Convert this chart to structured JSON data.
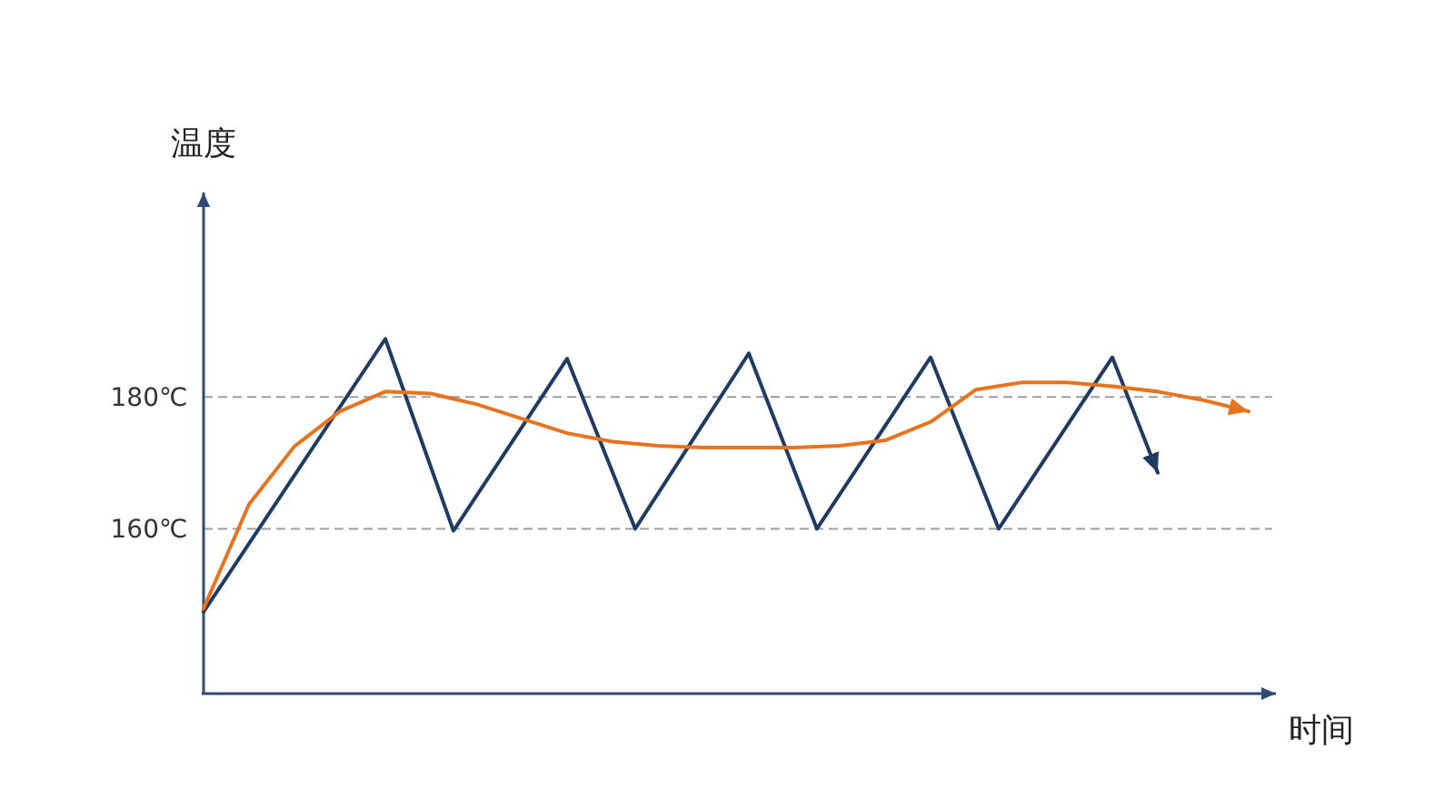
{
  "chart_data": {
    "type": "line",
    "xlabel": "时间",
    "ylabel": "温度",
    "categories": [
      null,
      null,
      null,
      null,
      null,
      null,
      null,
      null,
      null,
      null,
      null,
      null,
      null,
      null,
      null,
      null,
      null,
      null,
      null,
      null,
      null,
      null,
      null,
      null,
      null,
      null,
      null,
      null,
      null,
      null,
      null,
      null,
      null,
      null,
      null,
      null,
      null,
      null,
      null,
      null,
      null,
      null,
      null,
      null,
      null,
      null,
      null
    ],
    "ylim": [
      135,
      211
    ],
    "yticks": [
      {
        "value": 160,
        "label": "160℃"
      },
      {
        "value": 180,
        "label": "180℃"
      }
    ],
    "grid": "y",
    "tick_labels": "y",
    "series": [
      {
        "color": "#1f3b63",
        "values": [
          147.4,
          null,
          null,
          null,
          null,
          null,
          null,
          null,
          188.8,
          null,
          null,
          159.7,
          null,
          null,
          null,
          null,
          185.8,
          null,
          null,
          160,
          null,
          null,
          null,
          null,
          186.6,
          null,
          null,
          160,
          null,
          null,
          null,
          null,
          186,
          null,
          null,
          160,
          null,
          null,
          null,
          null,
          186,
          null,
          168.5,
          null,
          null,
          null,
          null
        ]
      },
      {
        "color": "#e8731f",
        "values": [
          147.9,
          null,
          163.7,
          null,
          172.5,
          null,
          177.8,
          null,
          180.8,
          null,
          180.5,
          null,
          178.9,
          null,
          176.7,
          null,
          174.5,
          null,
          173.2,
          null,
          172.6,
          null,
          172.3,
          null,
          172.3,
          null,
          172.3,
          null,
          172.6,
          null,
          173.4,
          null,
          176.2,
          null,
          181.1,
          null,
          182.2,
          null,
          182.2,
          null,
          181.6,
          null,
          180.8,
          null,
          179.5,
          null,
          177.8
        ]
      }
    ]
  }
}
